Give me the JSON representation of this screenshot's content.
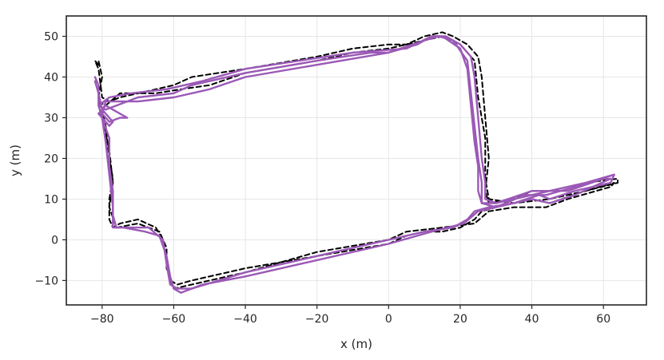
{
  "chart_data": {
    "type": "line",
    "title": "",
    "xlabel": "x (m)",
    "ylabel": "y (m)",
    "xlim": [
      -90,
      72
    ],
    "ylim": [
      -16,
      55
    ],
    "xticks": [
      -80,
      -60,
      -40,
      -20,
      0,
      20,
      40,
      60
    ],
    "yticks": [
      -10,
      0,
      10,
      20,
      30,
      40,
      50
    ],
    "xtick_labels": [
      "−80",
      "−60",
      "−40",
      "−20",
      "0",
      "20",
      "40",
      "60"
    ],
    "ytick_labels": [
      "−10",
      "0",
      "10",
      "20",
      "30",
      "40",
      "50"
    ],
    "grid": true,
    "legend": "none",
    "series": [
      {
        "color": "#000000",
        "style": "dashed",
        "points": [
          [
            -81,
            43
          ],
          [
            -82,
            44
          ],
          [
            -81,
            42
          ],
          [
            -80,
            35
          ],
          [
            -78,
            34
          ],
          [
            -75,
            35
          ],
          [
            -65,
            37
          ],
          [
            -60,
            38
          ],
          [
            -55,
            40
          ],
          [
            -40,
            42
          ],
          [
            -20,
            45
          ],
          [
            -10,
            47
          ],
          [
            0,
            48
          ],
          [
            5,
            48
          ],
          [
            10,
            50
          ],
          [
            15,
            51
          ],
          [
            18,
            50
          ],
          [
            22,
            48
          ],
          [
            25,
            45
          ],
          [
            26,
            40
          ],
          [
            27,
            30
          ],
          [
            28,
            20
          ],
          [
            27,
            12
          ],
          [
            28,
            9
          ],
          [
            35,
            10
          ],
          [
            40,
            12
          ],
          [
            45,
            12
          ],
          [
            55,
            14
          ],
          [
            64,
            15
          ],
          [
            64,
            14
          ],
          [
            55,
            12
          ],
          [
            45,
            9
          ],
          [
            40,
            10
          ],
          [
            35,
            9
          ],
          [
            30,
            8
          ],
          [
            26,
            7
          ],
          [
            24,
            5
          ],
          [
            20,
            3
          ],
          [
            15,
            2
          ],
          [
            10,
            2
          ],
          [
            5,
            1
          ],
          [
            0,
            -1
          ],
          [
            -20,
            -4
          ],
          [
            -40,
            -7
          ],
          [
            -55,
            -10
          ],
          [
            -59,
            -11
          ],
          [
            -61,
            -10
          ],
          [
            -62,
            -5
          ],
          [
            -63,
            0
          ],
          [
            -65,
            3
          ],
          [
            -70,
            5
          ],
          [
            -75,
            4
          ],
          [
            -77,
            3
          ],
          [
            -78,
            5
          ],
          [
            -78,
            10
          ],
          [
            -77,
            15
          ],
          [
            -78,
            20
          ],
          [
            -79,
            28
          ],
          [
            -80,
            32
          ],
          [
            -81,
            35
          ],
          [
            -80,
            40
          ],
          [
            -81,
            44
          ]
        ]
      },
      {
        "color": "#000000",
        "style": "dashed",
        "points": [
          [
            -81,
            34
          ],
          [
            -79,
            33
          ],
          [
            -75,
            36
          ],
          [
            -65,
            36
          ],
          [
            -58,
            37
          ],
          [
            -50,
            38
          ],
          [
            -40,
            41
          ],
          [
            -20,
            44
          ],
          [
            -10,
            46
          ],
          [
            0,
            47
          ],
          [
            10,
            49
          ],
          [
            15,
            50
          ],
          [
            20,
            48
          ],
          [
            24,
            44
          ],
          [
            25,
            35
          ],
          [
            27,
            25
          ],
          [
            27,
            15
          ],
          [
            28,
            10
          ],
          [
            35,
            9
          ],
          [
            45,
            10
          ],
          [
            55,
            12
          ],
          [
            63,
            14
          ],
          [
            62,
            13
          ],
          [
            50,
            10
          ],
          [
            44,
            8
          ],
          [
            35,
            8
          ],
          [
            28,
            7
          ],
          [
            24,
            4
          ],
          [
            15,
            3
          ],
          [
            5,
            2
          ],
          [
            0,
            0
          ],
          [
            -20,
            -3
          ],
          [
            -40,
            -8
          ],
          [
            -55,
            -11
          ],
          [
            -60,
            -12
          ],
          [
            -62,
            -7
          ],
          [
            -62,
            -2
          ],
          [
            -64,
            2
          ],
          [
            -70,
            4
          ],
          [
            -76,
            3
          ],
          [
            -78,
            8
          ],
          [
            -77,
            14
          ],
          [
            -78,
            22
          ],
          [
            -80,
            30
          ]
        ]
      },
      {
        "color": "#9b59b6",
        "style": "solid",
        "points": [
          [
            -82,
            40
          ],
          [
            -81,
            38
          ],
          [
            -81,
            33
          ],
          [
            -79,
            32
          ],
          [
            -76,
            33
          ],
          [
            -70,
            35
          ],
          [
            -60,
            36
          ],
          [
            -55,
            38
          ],
          [
            -40,
            41
          ],
          [
            -20,
            44
          ],
          [
            -5,
            46
          ],
          [
            0,
            46
          ],
          [
            8,
            48
          ],
          [
            12,
            50
          ],
          [
            16,
            50
          ],
          [
            20,
            48
          ],
          [
            23,
            45
          ],
          [
            24,
            40
          ],
          [
            25,
            30
          ],
          [
            26,
            20
          ],
          [
            27,
            14
          ],
          [
            27,
            10
          ],
          [
            30,
            9
          ],
          [
            40,
            11
          ],
          [
            45,
            12
          ],
          [
            55,
            14
          ],
          [
            63,
            16
          ],
          [
            62,
            14
          ],
          [
            52,
            12
          ],
          [
            45,
            10
          ],
          [
            42,
            11
          ],
          [
            35,
            9
          ],
          [
            28,
            8
          ],
          [
            24,
            7
          ],
          [
            22,
            5
          ],
          [
            18,
            3
          ],
          [
            10,
            2
          ],
          [
            0,
            0
          ],
          [
            -10,
            -2
          ],
          [
            -25,
            -5
          ],
          [
            -40,
            -8
          ],
          [
            -55,
            -12
          ],
          [
            -59,
            -12
          ],
          [
            -61,
            -11
          ],
          [
            -62,
            -6
          ],
          [
            -63,
            0
          ],
          [
            -67,
            3
          ],
          [
            -72,
            3
          ],
          [
            -76,
            3
          ],
          [
            -77,
            6
          ],
          [
            -77,
            12
          ],
          [
            -78,
            18
          ],
          [
            -78,
            25
          ],
          [
            -80,
            30
          ],
          [
            -81,
            31
          ]
        ]
      },
      {
        "color": "#9b59b6",
        "style": "solid",
        "points": [
          [
            -81,
            31
          ],
          [
            -79,
            33
          ],
          [
            -75,
            31
          ],
          [
            -73,
            30
          ],
          [
            -75,
            30
          ],
          [
            -78,
            29
          ],
          [
            -80,
            31
          ],
          [
            -79,
            34
          ],
          [
            -70,
            34
          ],
          [
            -60,
            35
          ],
          [
            -50,
            37
          ],
          [
            -40,
            40
          ],
          [
            -20,
            43
          ],
          [
            0,
            46
          ],
          [
            10,
            49
          ],
          [
            14,
            50
          ],
          [
            18,
            49
          ],
          [
            22,
            44
          ],
          [
            23,
            36
          ],
          [
            24,
            28
          ],
          [
            25,
            20
          ],
          [
            26,
            14
          ],
          [
            26,
            9
          ],
          [
            30,
            9
          ],
          [
            40,
            12
          ],
          [
            50,
            12
          ],
          [
            60,
            15
          ],
          [
            62,
            15
          ],
          [
            52,
            11
          ],
          [
            45,
            9
          ],
          [
            40,
            10
          ],
          [
            30,
            8
          ],
          [
            25,
            7
          ],
          [
            21,
            4
          ],
          [
            12,
            2
          ],
          [
            0,
            -1
          ],
          [
            -20,
            -5
          ],
          [
            -40,
            -9
          ],
          [
            -52,
            -11
          ],
          [
            -58,
            -13
          ],
          [
            -60,
            -12
          ],
          [
            -61,
            -9
          ],
          [
            -62,
            -4
          ],
          [
            -64,
            1
          ],
          [
            -68,
            2
          ],
          [
            -74,
            3
          ],
          [
            -77,
            3
          ],
          [
            -77,
            8
          ],
          [
            -78,
            16
          ],
          [
            -79,
            24
          ],
          [
            -80,
            30
          ]
        ]
      },
      {
        "color": "#9b59b6",
        "style": "solid",
        "points": [
          [
            -82,
            39
          ],
          [
            -81,
            36
          ],
          [
            -80,
            32
          ],
          [
            -78,
            30
          ],
          [
            -77,
            29
          ],
          [
            -78,
            28
          ],
          [
            -80,
            30
          ],
          [
            -81,
            33
          ],
          [
            -78,
            35
          ],
          [
            -72,
            36
          ],
          [
            -62,
            37
          ],
          [
            -52,
            39
          ],
          [
            -40,
            42
          ],
          [
            -25,
            44
          ],
          [
            -10,
            46
          ],
          [
            5,
            47
          ],
          [
            12,
            50
          ],
          [
            15,
            50
          ],
          [
            20,
            47
          ],
          [
            22,
            42
          ],
          [
            23,
            33
          ],
          [
            24,
            24
          ],
          [
            25,
            18
          ],
          [
            25,
            12
          ],
          [
            26,
            9
          ],
          [
            30,
            8
          ],
          [
            38,
            11
          ],
          [
            44,
            11
          ],
          [
            52,
            13
          ],
          [
            63,
            16
          ]
        ]
      }
    ]
  }
}
